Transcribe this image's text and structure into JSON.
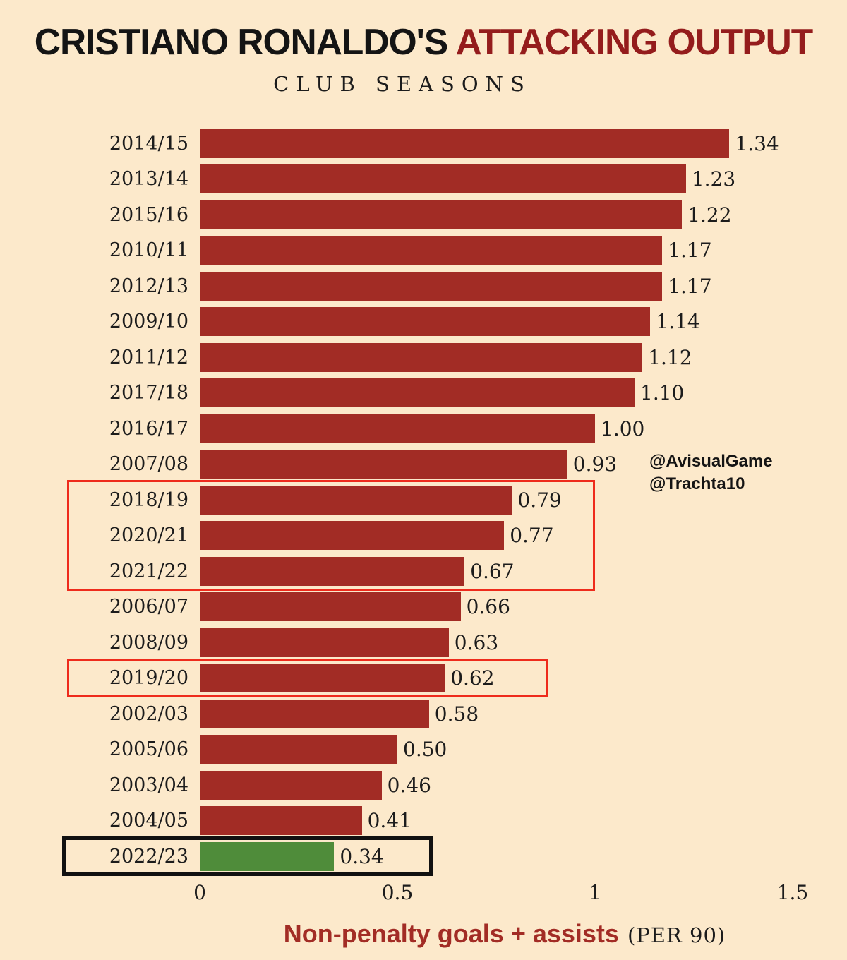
{
  "title": {
    "black": "CRISTIANO RONALDO'S",
    "red": "ATTACKING OUTPUT"
  },
  "subtitle": "CLUB SEASONS",
  "watermark": {
    "line1": "@AvisualGame",
    "line2": "@Trachta10"
  },
  "xlabel": {
    "main": "Non-penalty goals + assists",
    "suffix": "(PER 90)"
  },
  "colors": {
    "background": "#fce9cb",
    "bar": "#a22c25",
    "highlight_bar": "#4f8c3a",
    "title_accent": "#941c1c",
    "annotation_red": "#ee2b1c",
    "annotation_black": "#111111",
    "text": "#1c1c1c"
  },
  "chart_data": {
    "type": "bar",
    "orientation": "horizontal",
    "title": "CRISTIANO RONALDO'S ATTACKING OUTPUT",
    "subtitle": "CLUB SEASONS",
    "xlabel": "Non-penalty goals + assists (PER 90)",
    "xlim": [
      0,
      1.5
    ],
    "x_ticks": [
      0,
      0.5,
      1,
      1.5
    ],
    "x_tick_labels": [
      "0",
      "0.5",
      "1",
      "1.5"
    ],
    "grid": false,
    "legend": false,
    "green_category": "2022/23",
    "categories": [
      "2014/15",
      "2013/14",
      "2015/16",
      "2010/11",
      "2012/13",
      "2009/10",
      "2011/12",
      "2017/18",
      "2016/17",
      "2007/08",
      "2018/19",
      "2020/21",
      "2021/22",
      "2006/07",
      "2008/09",
      "2019/20",
      "2002/03",
      "2005/06",
      "2003/04",
      "2004/05",
      "2022/23"
    ],
    "values": [
      1.34,
      1.23,
      1.22,
      1.17,
      1.17,
      1.14,
      1.12,
      1.1,
      1.0,
      0.93,
      0.79,
      0.77,
      0.67,
      0.66,
      0.63,
      0.62,
      0.58,
      0.5,
      0.46,
      0.41,
      0.34
    ],
    "annotations": [
      {
        "shape": "rect",
        "color": "red",
        "from_category": "2018/19",
        "to_category": "2021/22",
        "right_value": 1.0
      },
      {
        "shape": "rect",
        "color": "red",
        "from_category": "2019/20",
        "to_category": "2019/20",
        "right_value": 0.88
      },
      {
        "shape": "rect",
        "color": "black",
        "from_category": "2022/23",
        "to_category": "2022/23",
        "right_value": 0.59
      }
    ]
  }
}
